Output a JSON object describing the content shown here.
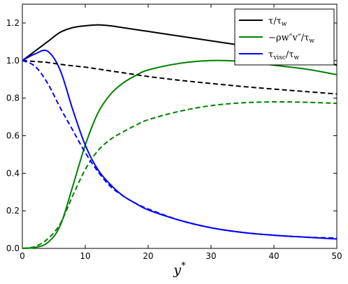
{
  "chart_data": {
    "type": "line",
    "xlabel": "y*",
    "ylabel": "",
    "xlim": [
      0,
      50
    ],
    "ylim": [
      0.0,
      1.3
    ],
    "xticks": [
      "0",
      "10",
      "20",
      "30",
      "40",
      "50"
    ],
    "yticks": [
      "0.0",
      "0.2",
      "0.4",
      "0.6",
      "0.8",
      "1.0",
      "1.2"
    ],
    "grid": false,
    "legend_position": "top-right",
    "x": [
      0,
      2,
      4,
      6,
      8,
      10,
      12,
      14,
      16,
      18,
      20,
      25,
      30,
      35,
      40,
      45,
      50
    ],
    "series": [
      {
        "name": "τ/τw",
        "legend": {
          "main": "τ/τ",
          "sub": "w",
          "tail": ""
        },
        "color": "#000000",
        "dash": "solid",
        "values": [
          1.0,
          1.05,
          1.1,
          1.15,
          1.175,
          1.185,
          1.19,
          1.185,
          1.175,
          1.165,
          1.155,
          1.13,
          1.105,
          1.08,
          1.055,
          1.03,
          0.975
        ]
      },
      {
        "name": "-ρw″v″/τw",
        "legend": {
          "main": "−ρw″v″/τ",
          "sub": "w",
          "tail": ""
        },
        "color": "#008000",
        "dash": "solid",
        "values": [
          0.0,
          0.005,
          0.03,
          0.12,
          0.33,
          0.55,
          0.72,
          0.82,
          0.88,
          0.92,
          0.95,
          0.985,
          1.0,
          0.995,
          0.975,
          0.955,
          0.925
        ]
      },
      {
        "name": "τvisc/τw",
        "legend": {
          "main": "τ",
          "sub": "visc",
          "tail": "/τ",
          "sub2": "w"
        },
        "color": "#0000ff",
        "dash": "solid",
        "values": [
          1.0,
          1.035,
          1.05,
          0.95,
          0.74,
          0.55,
          0.42,
          0.34,
          0.28,
          0.24,
          0.205,
          0.15,
          0.11,
          0.085,
          0.07,
          0.06,
          0.05
        ]
      },
      {
        "name": "",
        "color": "#000000",
        "dash": "dashed",
        "values": [
          1.0,
          0.995,
          0.99,
          0.98,
          0.972,
          0.965,
          0.955,
          0.945,
          0.935,
          0.925,
          0.915,
          0.895,
          0.878,
          0.862,
          0.848,
          0.835,
          0.822
        ]
      },
      {
        "name": "",
        "color": "#008000",
        "dash": "dashed",
        "values": [
          0.0,
          0.01,
          0.05,
          0.13,
          0.28,
          0.42,
          0.52,
          0.58,
          0.62,
          0.655,
          0.685,
          0.73,
          0.76,
          0.775,
          0.78,
          0.778,
          0.772
        ]
      },
      {
        "name": "",
        "color": "#0000ff",
        "dash": "dashed",
        "values": [
          1.0,
          0.97,
          0.88,
          0.75,
          0.63,
          0.51,
          0.41,
          0.33,
          0.28,
          0.24,
          0.21,
          0.15,
          0.11,
          0.085,
          0.07,
          0.06,
          0.055
        ]
      }
    ]
  }
}
